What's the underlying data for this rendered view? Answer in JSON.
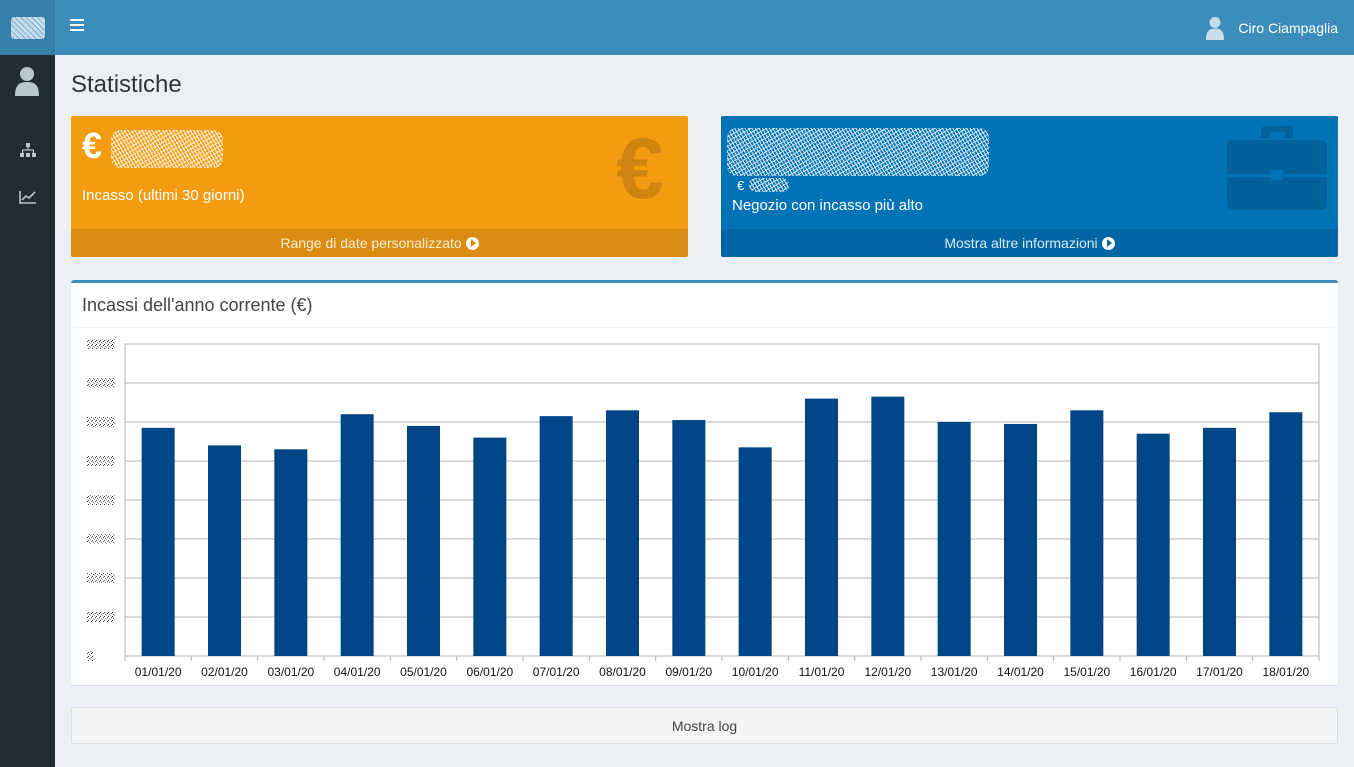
{
  "header": {
    "user_name": "Ciro Ciampaglia"
  },
  "page": {
    "title": "Statistiche"
  },
  "cards": [
    {
      "currency_symbol": "€",
      "label": "Incasso (ultimi 30 giorni)",
      "footer": "Range di date personalizzato",
      "color": "#f39c12",
      "icon": "euro-icon"
    },
    {
      "sub_currency": "€",
      "label": "Negozio con incasso più alto",
      "footer": "Mostra altre informazioni",
      "color": "#0073b7",
      "icon": "briefcase-icon"
    }
  ],
  "chart_panel": {
    "title": "Incassi dell'anno corrente (€)"
  },
  "chart_data": {
    "type": "bar",
    "categories": [
      "01/01/20",
      "02/01/20",
      "03/01/20",
      "04/01/20",
      "05/01/20",
      "06/01/20",
      "07/01/20",
      "08/01/20",
      "09/01/20",
      "10/01/20",
      "11/01/20",
      "12/01/20",
      "13/01/20",
      "14/01/20",
      "15/01/20",
      "16/01/20",
      "17/01/20",
      "18/01/20"
    ],
    "values": [
      5.85,
      5.4,
      5.3,
      6.2,
      5.9,
      5.6,
      6.15,
      6.3,
      6.05,
      5.35,
      6.6,
      6.65,
      6.0,
      5.95,
      6.3,
      5.7,
      5.85,
      6.25
    ],
    "ylim": [
      0,
      8
    ],
    "grid": true,
    "bar_color": "#004586"
  },
  "footer": {
    "log_button": "Mostra log"
  }
}
